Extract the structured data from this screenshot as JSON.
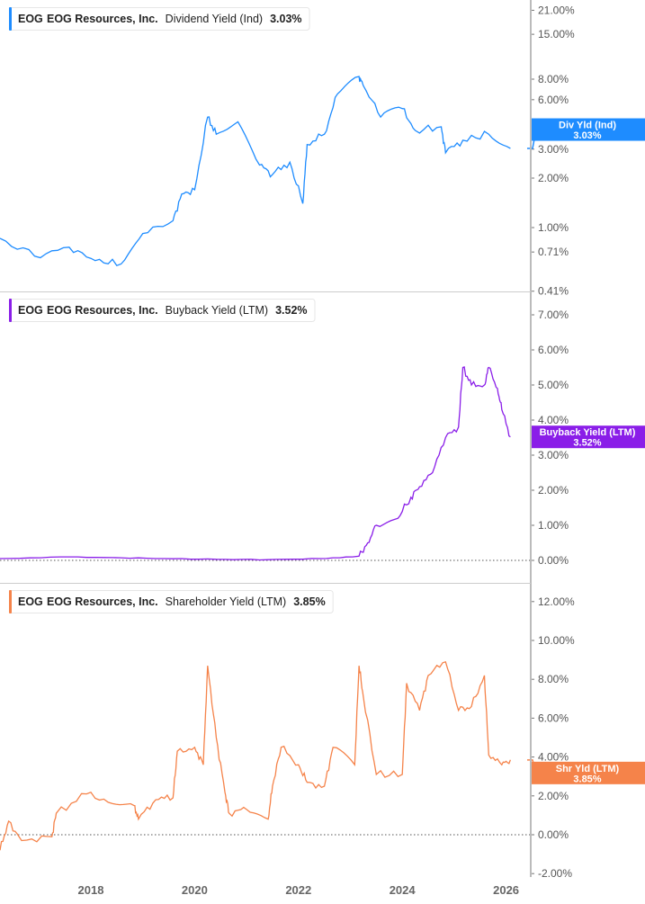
{
  "chart_data": [
    {
      "type": "line",
      "legend": {
        "ticker": "EOG",
        "company": "EOG Resources, Inc.",
        "metric": "Dividend Yield (Ind)",
        "value": "3.03%"
      },
      "badge": {
        "label": "Div Yld (Ind)",
        "value": "3.03%"
      },
      "color": "#1e8cff",
      "yscale": "log",
      "ylim": [
        0.41,
        23
      ],
      "yticks": [
        "21.00%",
        "15.00%",
        "8.00%",
        "6.00%",
        "3.00%",
        "2.00%",
        "1.00%",
        "0.71%",
        "0.41%"
      ],
      "ytick_values": [
        21,
        15,
        8,
        6,
        3,
        2,
        1,
        0.71,
        0.41
      ],
      "zero_line": false,
      "points": [
        [
          "2016-04",
          0.86
        ],
        [
          "2016-12",
          0.67
        ],
        [
          "2017-08",
          0.76
        ],
        [
          "2018-02",
          0.63
        ],
        [
          "2018-08",
          0.6
        ],
        [
          "2019-01",
          0.92
        ],
        [
          "2019-08",
          1.1
        ],
        [
          "2019-10",
          1.6
        ],
        [
          "2020-01",
          1.7
        ],
        [
          "2020-04",
          4.7
        ],
        [
          "2020-06",
          3.7
        ],
        [
          "2020-11",
          4.4
        ],
        [
          "2021-04",
          2.4
        ],
        [
          "2021-07",
          2.1
        ],
        [
          "2021-11",
          2.5
        ],
        [
          "2022-02",
          1.4
        ],
        [
          "2022-03",
          3.2
        ],
        [
          "2022-07",
          3.7
        ],
        [
          "2022-10",
          6.5
        ],
        [
          "2023-03",
          8.3
        ],
        [
          "2023-04",
          7.3
        ],
        [
          "2023-08",
          4.7
        ],
        [
          "2024-01",
          5.3
        ],
        [
          "2024-04",
          3.9
        ],
        [
          "2024-10",
          4.1
        ],
        [
          "2024-11",
          2.85
        ],
        [
          "2025-03",
          3.4
        ],
        [
          "2025-09",
          3.7
        ],
        [
          "2026-02",
          3.03
        ]
      ]
    },
    {
      "type": "line",
      "legend": {
        "ticker": "EOG",
        "company": "EOG Resources, Inc.",
        "metric": "Buyback Yield (LTM)",
        "value": "3.52%"
      },
      "badge": {
        "label": "Buyback Yield (LTM)",
        "value": "3.52%"
      },
      "color": "#8a1ee8",
      "yscale": "linear",
      "ylim": [
        -0.1,
        7.3
      ],
      "yticks": [
        "7.00%",
        "6.00%",
        "5.00%",
        "4.00%",
        "3.00%",
        "2.00%",
        "1.00%",
        "0.00%"
      ],
      "ytick_values": [
        7,
        6,
        5,
        4,
        3,
        2,
        1,
        0
      ],
      "zero_line": true,
      "points": [
        [
          "2016-04",
          0.05
        ],
        [
          "2017-06",
          0.1
        ],
        [
          "2018-06",
          0.08
        ],
        [
          "2019-06",
          0.05
        ],
        [
          "2020-06",
          0.03
        ],
        [
          "2021-06",
          0.02
        ],
        [
          "2022-06",
          0.05
        ],
        [
          "2023-03",
          0.12
        ],
        [
          "2023-05",
          0.5
        ],
        [
          "2023-07",
          1.0
        ],
        [
          "2023-12",
          1.2
        ],
        [
          "2024-03",
          1.8
        ],
        [
          "2024-05",
          2.1
        ],
        [
          "2024-08",
          2.5
        ],
        [
          "2024-11",
          3.5
        ],
        [
          "2025-02",
          3.8
        ],
        [
          "2025-03",
          5.5
        ],
        [
          "2025-05",
          5.0
        ],
        [
          "2025-08",
          5.0
        ],
        [
          "2025-09",
          5.5
        ],
        [
          "2025-11",
          4.9
        ],
        [
          "2025-12",
          4.3
        ],
        [
          "2026-02",
          3.52
        ]
      ]
    },
    {
      "type": "line",
      "legend": {
        "ticker": "EOG",
        "company": "EOG Resources, Inc.",
        "metric": "Shareholder Yield (LTM)",
        "value": "3.85%"
      },
      "badge": {
        "label": "Shr Yld (LTM)",
        "value": "3.85%"
      },
      "color": "#f5834a",
      "yscale": "linear",
      "ylim": [
        -2.3,
        12.6
      ],
      "yticks": [
        "12.00%",
        "10.00%",
        "8.00%",
        "6.00%",
        "4.00%",
        "2.00%",
        "0.00%",
        "-2.00%"
      ],
      "ytick_values": [
        12,
        10,
        8,
        6,
        4,
        2,
        0,
        -2
      ],
      "zero_line": true,
      "points": [
        [
          "2016-04",
          -0.8
        ],
        [
          "2016-06",
          0.7
        ],
        [
          "2016-09",
          -0.3
        ],
        [
          "2017-04",
          -0.1
        ],
        [
          "2017-05",
          1.1
        ],
        [
          "2017-12",
          2.1
        ],
        [
          "2018-06",
          1.6
        ],
        [
          "2018-11",
          1.5
        ],
        [
          "2018-12",
          0.8
        ],
        [
          "2019-04",
          1.8
        ],
        [
          "2019-08",
          1.9
        ],
        [
          "2019-09",
          4.3
        ],
        [
          "2020-01",
          4.5
        ],
        [
          "2020-03",
          3.6
        ],
        [
          "2020-04",
          8.7
        ],
        [
          "2020-06",
          5.0
        ],
        [
          "2020-08",
          2.2
        ],
        [
          "2020-09",
          1.1
        ],
        [
          "2021-01",
          1.3
        ],
        [
          "2021-06",
          0.8
        ],
        [
          "2021-07",
          2.5
        ],
        [
          "2021-09",
          4.5
        ],
        [
          "2022-01",
          3.6
        ],
        [
          "2022-03",
          2.7
        ],
        [
          "2022-07",
          2.5
        ],
        [
          "2022-09",
          4.5
        ],
        [
          "2023-02",
          3.6
        ],
        [
          "2023-03",
          8.7
        ],
        [
          "2023-04",
          7.1
        ],
        [
          "2023-07",
          3.1
        ],
        [
          "2024-01",
          3.1
        ],
        [
          "2024-02",
          7.8
        ],
        [
          "2024-05",
          6.4
        ],
        [
          "2024-07",
          8.2
        ],
        [
          "2024-11",
          8.9
        ],
        [
          "2025-02",
          6.4
        ],
        [
          "2025-05",
          6.6
        ],
        [
          "2025-08",
          8.2
        ],
        [
          "2025-09",
          4.1
        ],
        [
          "2025-12",
          3.6
        ],
        [
          "2026-02",
          3.85
        ]
      ]
    }
  ],
  "xaxis": {
    "ticks": [
      "2018",
      "2020",
      "2022",
      "2024",
      "2026"
    ]
  }
}
